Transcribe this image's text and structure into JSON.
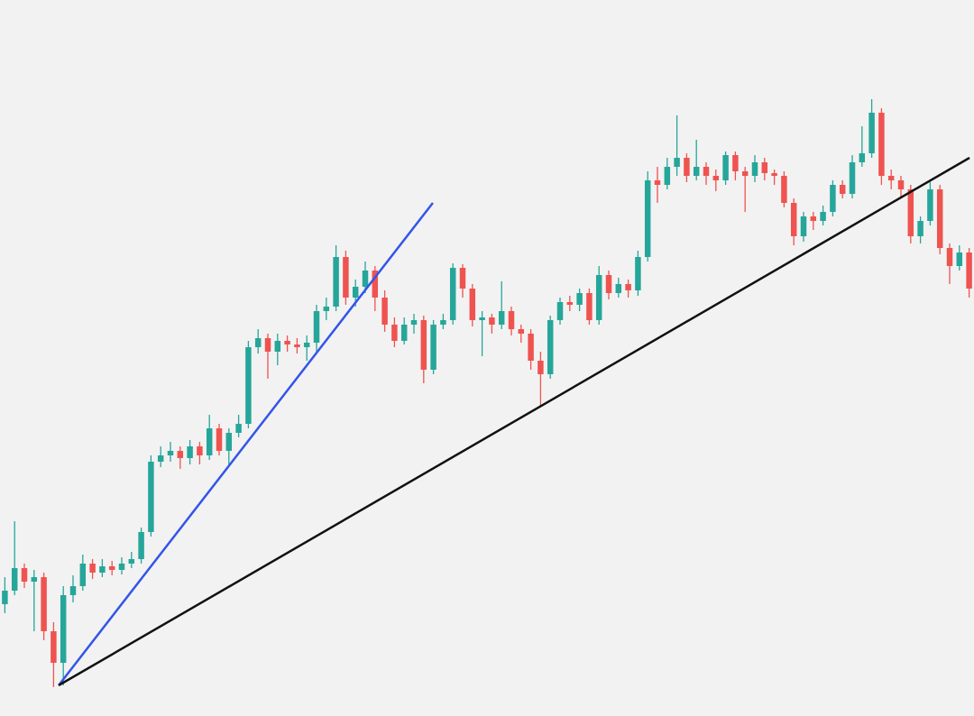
{
  "chart_data": {
    "type": "candlestick",
    "up_color": "#26a69a",
    "down_color": "#ef5350",
    "xlim": [
      -0.5,
      99.5
    ],
    "ylim": [
      6,
      800
    ],
    "open": [
      130,
      145,
      170,
      155,
      160,
      100,
      65,
      140,
      150,
      175,
      165,
      172,
      168,
      175,
      180,
      210,
      288,
      295,
      300,
      292,
      305,
      295,
      325,
      300,
      320,
      330,
      415,
      425,
      410,
      422,
      418,
      415,
      420,
      455,
      460,
      515,
      470,
      482,
      500,
      470,
      440,
      422,
      440,
      445,
      390,
      440,
      445,
      503,
      480,
      445,
      448,
      440,
      455,
      435,
      430,
      400,
      385,
      445,
      465,
      462,
      475,
      445,
      495,
      475,
      485,
      478,
      515,
      600,
      595,
      615,
      625,
      605,
      615,
      605,
      600,
      628,
      610,
      605,
      620,
      608,
      605,
      575,
      538,
      560,
      555,
      565,
      595,
      585,
      620,
      630,
      675,
      605,
      600,
      590,
      538,
      555,
      590,
      525,
      505,
      520
    ],
    "high": [
      160,
      222,
      175,
      168,
      165,
      110,
      150,
      162,
      185,
      180,
      180,
      178,
      182,
      188,
      215,
      295,
      305,
      310,
      305,
      312,
      310,
      340,
      330,
      325,
      340,
      422,
      435,
      430,
      430,
      428,
      425,
      428,
      462,
      470,
      528,
      522,
      490,
      510,
      505,
      478,
      448,
      448,
      452,
      450,
      445,
      452,
      508,
      507,
      485,
      455,
      452,
      488,
      460,
      440,
      435,
      410,
      450,
      470,
      472,
      480,
      480,
      505,
      500,
      492,
      490,
      522,
      610,
      615,
      625,
      672,
      630,
      645,
      620,
      612,
      632,
      632,
      615,
      628,
      625,
      612,
      610,
      580,
      565,
      565,
      572,
      600,
      600,
      628,
      660,
      690,
      680,
      612,
      605,
      595,
      560,
      598,
      595,
      530,
      528,
      525
    ],
    "low": [
      120,
      140,
      148,
      100,
      90,
      38,
      40,
      132,
      145,
      158,
      160,
      162,
      163,
      170,
      175,
      205,
      282,
      288,
      280,
      285,
      285,
      290,
      295,
      285,
      315,
      325,
      408,
      380,
      395,
      410,
      408,
      400,
      410,
      445,
      455,
      462,
      460,
      475,
      455,
      432,
      415,
      418,
      430,
      375,
      385,
      435,
      440,
      470,
      438,
      405,
      430,
      435,
      428,
      420,
      390,
      350,
      380,
      440,
      455,
      455,
      440,
      440,
      468,
      470,
      470,
      472,
      510,
      575,
      590,
      605,
      598,
      600,
      595,
      588,
      595,
      600,
      565,
      598,
      600,
      595,
      570,
      528,
      532,
      545,
      550,
      560,
      580,
      580,
      615,
      625,
      595,
      590,
      580,
      530,
      530,
      550,
      518,
      485,
      500,
      470
    ],
    "close": [
      145,
      170,
      155,
      160,
      100,
      65,
      140,
      150,
      175,
      165,
      172,
      168,
      175,
      180,
      210,
      288,
      295,
      300,
      292,
      305,
      295,
      325,
      300,
      320,
      330,
      415,
      425,
      410,
      422,
      418,
      415,
      420,
      455,
      460,
      515,
      470,
      482,
      500,
      470,
      440,
      422,
      440,
      445,
      390,
      440,
      445,
      503,
      480,
      445,
      448,
      440,
      455,
      435,
      430,
      400,
      385,
      445,
      465,
      462,
      475,
      445,
      495,
      475,
      485,
      478,
      515,
      600,
      595,
      615,
      625,
      605,
      615,
      605,
      600,
      628,
      610,
      605,
      620,
      608,
      605,
      575,
      538,
      560,
      555,
      565,
      595,
      585,
      620,
      630,
      675,
      605,
      600,
      590,
      538,
      555,
      590,
      525,
      505,
      520,
      480
    ],
    "lines": [
      {
        "color": "#3355e8",
        "x": [
          5.52,
          43.94
        ],
        "y": [
          40,
          575
        ]
      },
      {
        "color": "#111111",
        "x": [
          5.52,
          99.04
        ],
        "y": [
          40,
          625
        ]
      }
    ]
  }
}
